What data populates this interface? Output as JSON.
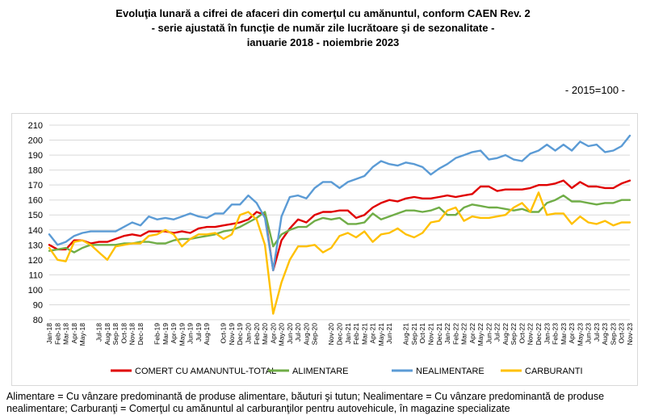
{
  "title_lines": [
    "Evoluţia lunară a cifrei de afaceri din comerţul cu amănuntul, conform CAEN Rev. 2",
    "- serie ajustată în funcţie de număr zile lucrătoare şi de sezonalitate -",
    "ianuarie 2018 - noiembrie 2023"
  ],
  "unit_label": "- 2015=100 -",
  "footnote": "Alimentare = Cu vânzare predominantă de produse alimentare, băuturi şi tutun; Nealimentare = Cu vânzare predominantă de produse nealimentare; Carburanţi = Comerţul cu amănuntul al carburanţilor pentru autovehicule, în magazine specializate",
  "chart_data": {
    "type": "line",
    "ylim": [
      80,
      210
    ],
    "ytick_step": 10,
    "grid": "horizontal",
    "legend_position": "bottom",
    "categories": [
      "Jan-18",
      "Feb-18",
      "Mar-18",
      "Apr-18",
      "May-18",
      "Jun-18",
      "Jul-18",
      "Aug-18",
      "Sep-18",
      "Oct-18",
      "Nov-18",
      "Dec-18",
      "Jan-19",
      "Feb-19",
      "Mar-19",
      "Apr-19",
      "May-19",
      "Jun-19",
      "Jul-19",
      "Aug-19",
      "Sep-19",
      "Oct-19",
      "Nov-19",
      "Dec-19",
      "Jan-20",
      "Feb-20",
      "Mar-20",
      "Apr-20",
      "May-20",
      "Jun-20",
      "Jul-20",
      "Aug-20",
      "Sep-20",
      "Oct-20",
      "Nov-20",
      "Dec-20",
      "Jan-21",
      "Feb-21",
      "Mar-21",
      "Apr-21",
      "May-21",
      "Jun-21",
      "Jul-21",
      "Aug-21",
      "Sep-21",
      "Oct-21",
      "Nov-21",
      "Dec-21",
      "Jan-22",
      "Feb-22",
      "Mar-22",
      "Apr-22",
      "May-22",
      "Jun-22",
      "Jul-22",
      "Aug-22",
      "Sep-22",
      "Oct-22",
      "Nov-22",
      "Dec-22",
      "Jan-23",
      "Feb-23",
      "Mar-23",
      "Apr-23",
      "May-23",
      "Jun-23",
      "Jul-23",
      "Aug-23",
      "Sep-23",
      "Oct-23",
      "Nov-23"
    ],
    "xtick_labels": [
      "Jan-18",
      "Feb-18",
      "Mar-18",
      "Apr-18",
      "May-18",
      "Jul-18",
      "Aug-18",
      "Sep-18",
      "Oct-18",
      "Nov-18",
      "Dec-18",
      "Feb-19",
      "Mar-19",
      "Apr-19",
      "May-19",
      "Jun-19",
      "Jul-19",
      "Aug-19",
      "Oct-19",
      "Nov-19",
      "Dec-19",
      "Jan-20",
      "Feb-20",
      "Mar-20",
      "Apr-20",
      "May-20",
      "Jun-20",
      "Jul-20",
      "Aug-20",
      "Sep-20",
      "Nov-20",
      "Dec-20",
      "Jan-21",
      "Feb-21",
      "Mar-21",
      "Apr-21",
      "May-21",
      "Jun-21",
      "Aug-21",
      "Sep-21",
      "Oct-21",
      "Nov-21",
      "Dec-21",
      "Jan-22",
      "Feb-22",
      "Mar-22",
      "Apr-22",
      "May-22",
      "Jun-22",
      "Jul-22",
      "Aug-22",
      "Sep-22",
      "Oct-22",
      "Nov-22",
      "Dec-22",
      "Jan-23",
      "Feb-23",
      "Mar-23",
      "Apr-23",
      "May-23",
      "Jun-23",
      "Jul-23",
      "Aug-23",
      "Sep-23",
      "Oct-23",
      "Nov-23"
    ],
    "series": [
      {
        "name": "COMERT CU AMANUNTUL-TOTAL",
        "color": "#e00000",
        "values": [
          130,
          127,
          127,
          133,
          133,
          131,
          132,
          132,
          134,
          136,
          137,
          136,
          139,
          139,
          139,
          138,
          139,
          138,
          141,
          142,
          142,
          143,
          144,
          145,
          147,
          152,
          150,
          113,
          133,
          141,
          147,
          145,
          150,
          152,
          152,
          153,
          153,
          148,
          150,
          155,
          158,
          160,
          159,
          161,
          162,
          161,
          161,
          162,
          163,
          162,
          163,
          164,
          169,
          169,
          166,
          167,
          167,
          167,
          168,
          170,
          170,
          171,
          173,
          168,
          172,
          169,
          169,
          168,
          168,
          171,
          173
        ]
      },
      {
        "name": "ALIMENTARE",
        "color": "#70ad47",
        "values": [
          126,
          127,
          128,
          125,
          128,
          130,
          130,
          130,
          130,
          131,
          131,
          132,
          132,
          131,
          131,
          133,
          134,
          134,
          135,
          136,
          137,
          139,
          140,
          142,
          145,
          148,
          152,
          129,
          137,
          140,
          142,
          142,
          146,
          148,
          147,
          148,
          144,
          144,
          145,
          151,
          147,
          149,
          151,
          153,
          153,
          152,
          153,
          155,
          150,
          150,
          155,
          157,
          156,
          155,
          155,
          154,
          153,
          154,
          152,
          152,
          158,
          160,
          163,
          159,
          159,
          158,
          157,
          158,
          158,
          160,
          160
        ]
      },
      {
        "name": "NEALIMENTARE",
        "color": "#5b9bd5",
        "values": [
          137,
          130,
          132,
          136,
          138,
          139,
          139,
          139,
          139,
          142,
          145,
          143,
          149,
          147,
          148,
          147,
          149,
          151,
          149,
          148,
          151,
          151,
          157,
          157,
          163,
          158,
          148,
          113,
          149,
          162,
          163,
          161,
          168,
          172,
          172,
          168,
          172,
          174,
          176,
          182,
          186,
          184,
          183,
          185,
          184,
          182,
          177,
          181,
          184,
          188,
          190,
          192,
          193,
          187,
          188,
          190,
          187,
          186,
          191,
          193,
          197,
          193,
          197,
          193,
          199,
          196,
          197,
          192,
          193,
          196,
          203
        ]
      },
      {
        "name": "CARBURANTI",
        "color": "#ffc000",
        "values": [
          128,
          120,
          119,
          132,
          133,
          130,
          125,
          120,
          129,
          130,
          131,
          131,
          136,
          137,
          140,
          137,
          129,
          134,
          137,
          137,
          138,
          134,
          137,
          150,
          152,
          147,
          130,
          84,
          105,
          120,
          129,
          129,
          130,
          125,
          128,
          136,
          138,
          135,
          139,
          132,
          137,
          138,
          141,
          137,
          135,
          138,
          145,
          146,
          153,
          155,
          146,
          149,
          148,
          148,
          149,
          150,
          155,
          158,
          152,
          165,
          150,
          151,
          151,
          144,
          149,
          145,
          144,
          146,
          143,
          145,
          145
        ]
      }
    ]
  }
}
